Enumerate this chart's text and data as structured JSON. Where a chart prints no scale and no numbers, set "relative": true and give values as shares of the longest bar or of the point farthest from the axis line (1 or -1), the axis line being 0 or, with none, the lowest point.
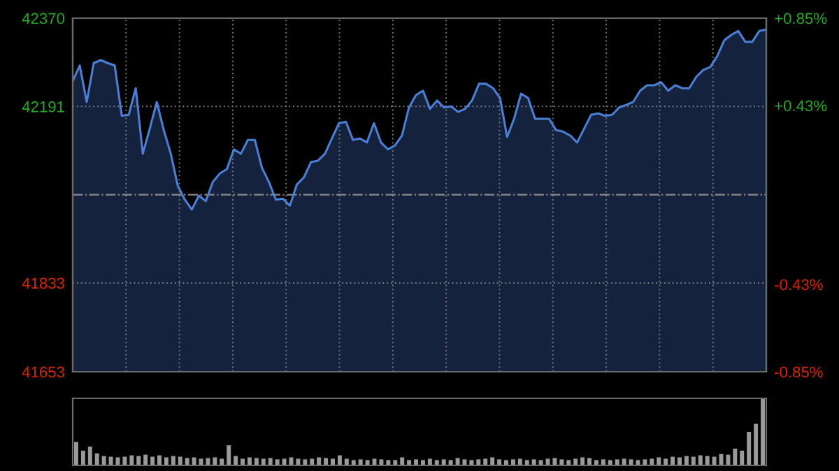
{
  "chart_data": [
    {
      "type": "area",
      "categories": [
        null,
        null,
        null,
        null,
        null,
        null,
        null,
        null,
        null,
        null,
        null,
        null,
        null,
        null,
        null,
        null,
        null,
        null,
        null,
        null,
        null,
        null,
        null,
        null,
        null,
        null,
        null,
        null,
        null,
        null,
        null,
        null,
        null,
        null,
        null,
        null,
        null,
        null,
        null,
        null,
        null,
        null,
        null,
        null,
        null,
        null,
        null,
        null,
        null,
        null,
        null,
        null,
        null,
        null,
        null,
        null,
        null,
        null,
        null,
        null,
        null,
        null,
        null,
        null,
        null,
        null,
        null,
        null,
        null,
        null,
        null,
        null,
        null,
        null,
        null,
        null,
        null,
        null,
        null,
        null,
        null,
        null,
        null,
        null,
        null,
        null,
        null,
        null,
        null,
        null,
        null,
        null,
        null,
        null,
        null,
        null,
        null,
        null,
        null,
        null
      ],
      "series": [
        {
          "color": "#4a7fd4",
          "values": [
            42242,
            42274,
            42200,
            42279,
            42285,
            42279,
            42274,
            42172,
            42174,
            42228,
            42095,
            42146,
            42200,
            42143,
            42095,
            42030,
            42002,
            41982,
            42010,
            41999,
            42038,
            42055,
            42064,
            42104,
            42095,
            42123,
            42123,
            42067,
            42038,
            42002,
            42004,
            41990,
            42033,
            42047,
            42078,
            42081,
            42095,
            42126,
            42157,
            42160,
            42123,
            42126,
            42118,
            42157,
            42118,
            42104,
            42112,
            42132,
            42189,
            42214,
            42223,
            42186,
            42203,
            42189,
            42191,
            42180,
            42186,
            42203,
            42237,
            42237,
            42228,
            42208,
            42129,
            42166,
            42217,
            42208,
            42166,
            42166,
            42166,
            42143,
            42140,
            42132,
            42118,
            42146,
            42174,
            42177,
            42172,
            42174,
            42189,
            42194,
            42200,
            42223,
            42234,
            42234,
            42240,
            42223,
            42234,
            42228,
            42228,
            42251,
            42265,
            42271,
            42293,
            42325,
            42336,
            42344,
            42322,
            42322,
            42344,
            42347
          ]
        }
      ],
      "ylim": [
        41653,
        42370
      ],
      "yticks": [
        42370,
        42191,
        41833,
        41653
      ],
      "y2lim": [
        -0.85,
        0.85
      ],
      "y2ticks": [
        {
          "value": 0.85,
          "label": "+0.85%"
        },
        {
          "value": 0.43,
          "label": "+0.43%"
        },
        {
          "value": -0.43,
          "label": "-0.43%"
        },
        {
          "value": -0.85,
          "label": "-0.85%"
        }
      ],
      "ref_lines": [
        {
          "axis": "y",
          "value": 42012,
          "label": null,
          "color": "#8a8a8a",
          "line_style": "dashdot"
        }
      ],
      "grid": true,
      "legend": false
    },
    {
      "type": "bar",
      "relative": true,
      "color": "#9a9a9a",
      "categories": [
        null,
        null,
        null,
        null,
        null,
        null,
        null,
        null,
        null,
        null,
        null,
        null,
        null,
        null,
        null,
        null,
        null,
        null,
        null,
        null,
        null,
        null,
        null,
        null,
        null,
        null,
        null,
        null,
        null,
        null,
        null,
        null,
        null,
        null,
        null,
        null,
        null,
        null,
        null,
        null,
        null,
        null,
        null,
        null,
        null,
        null,
        null,
        null,
        null,
        null,
        null,
        null,
        null,
        null,
        null,
        null,
        null,
        null,
        null,
        null,
        null,
        null,
        null,
        null,
        null,
        null,
        null,
        null,
        null,
        null,
        null,
        null,
        null,
        null,
        null,
        null,
        null,
        null,
        null,
        null,
        null,
        null,
        null,
        null,
        null,
        null,
        null,
        null,
        null,
        null,
        null,
        null,
        null,
        null,
        null,
        null,
        null,
        null,
        null,
        null
      ],
      "values": [
        0.35,
        0.22,
        0.28,
        0.18,
        0.14,
        0.13,
        0.12,
        0.13,
        0.15,
        0.14,
        0.16,
        0.13,
        0.15,
        0.12,
        0.14,
        0.13,
        0.11,
        0.12,
        0.1,
        0.11,
        0.12,
        0.1,
        0.3,
        0.14,
        0.1,
        0.12,
        0.11,
        0.1,
        0.11,
        0.09,
        0.1,
        0.12,
        0.1,
        0.09,
        0.1,
        0.12,
        0.11,
        0.1,
        0.15,
        0.1,
        0.08,
        0.09,
        0.08,
        0.1,
        0.09,
        0.08,
        0.08,
        0.12,
        0.08,
        0.09,
        0.08,
        0.1,
        0.08,
        0.09,
        0.08,
        0.11,
        0.09,
        0.08,
        0.09,
        0.1,
        0.12,
        0.09,
        0.08,
        0.09,
        0.1,
        0.08,
        0.09,
        0.08,
        0.1,
        0.11,
        0.09,
        0.08,
        0.1,
        0.12,
        0.11,
        0.08,
        0.09,
        0.08,
        0.09,
        0.1,
        0.09,
        0.08,
        0.09,
        0.1,
        0.12,
        0.1,
        0.13,
        0.12,
        0.14,
        0.13,
        0.15,
        0.14,
        0.13,
        0.17,
        0.16,
        0.25,
        0.22,
        0.5,
        0.62,
        1.0
      ],
      "grid": false
    }
  ]
}
